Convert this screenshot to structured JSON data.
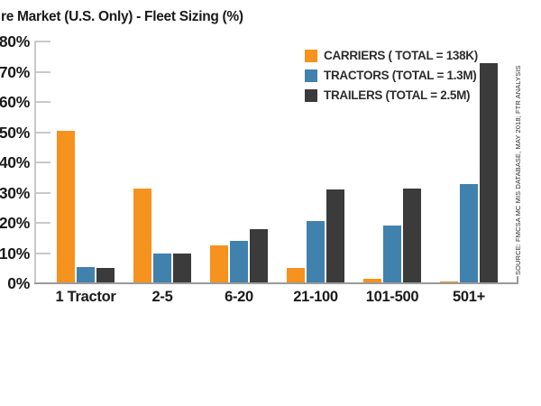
{
  "title": "re Market (U.S. Only) - Fleet Sizing (%)",
  "chart_data": {
    "type": "bar",
    "title": "re Market (U.S. Only) - Fleet Sizing (%)",
    "categories": [
      "1 Tractor",
      "2-5",
      "6-20",
      "21-100",
      "101-500",
      "501+"
    ],
    "series": [
      {
        "name": "CARRIERS ( TOTAL = 138K)",
        "color": "#F6921E",
        "values": [
          50.5,
          31.5,
          12.5,
          5,
          1.5,
          0.5
        ]
      },
      {
        "name": "TRACTORS (TOTAL = 1.3M)",
        "color": "#4181AD",
        "values": [
          5.5,
          10,
          14,
          20.5,
          19,
          33
        ]
      },
      {
        "name": "TRAILERS (TOTAL = 2.5M)",
        "color": "#3B3B3B",
        "values": [
          5,
          10,
          18,
          31,
          31.5,
          73
        ]
      }
    ],
    "xlabel": "",
    "ylabel": "",
    "ylim": [
      0,
      80
    ],
    "y_tick_step": 10,
    "y_tick_labels": [
      "80%",
      "70%",
      "60%",
      "50%",
      "40%",
      "30%",
      "20%",
      "10%",
      "0%"
    ],
    "grid": false,
    "legend_position": "top-right",
    "source_note": "SOURCE: FMCSA MC MIS DATABASE, MAY 2018; FTR ANALYSIS"
  },
  "colors": {
    "axis_light": "#C9C9C9",
    "axis_dark": "#9B9B9B",
    "text": "#1A1A1A"
  }
}
